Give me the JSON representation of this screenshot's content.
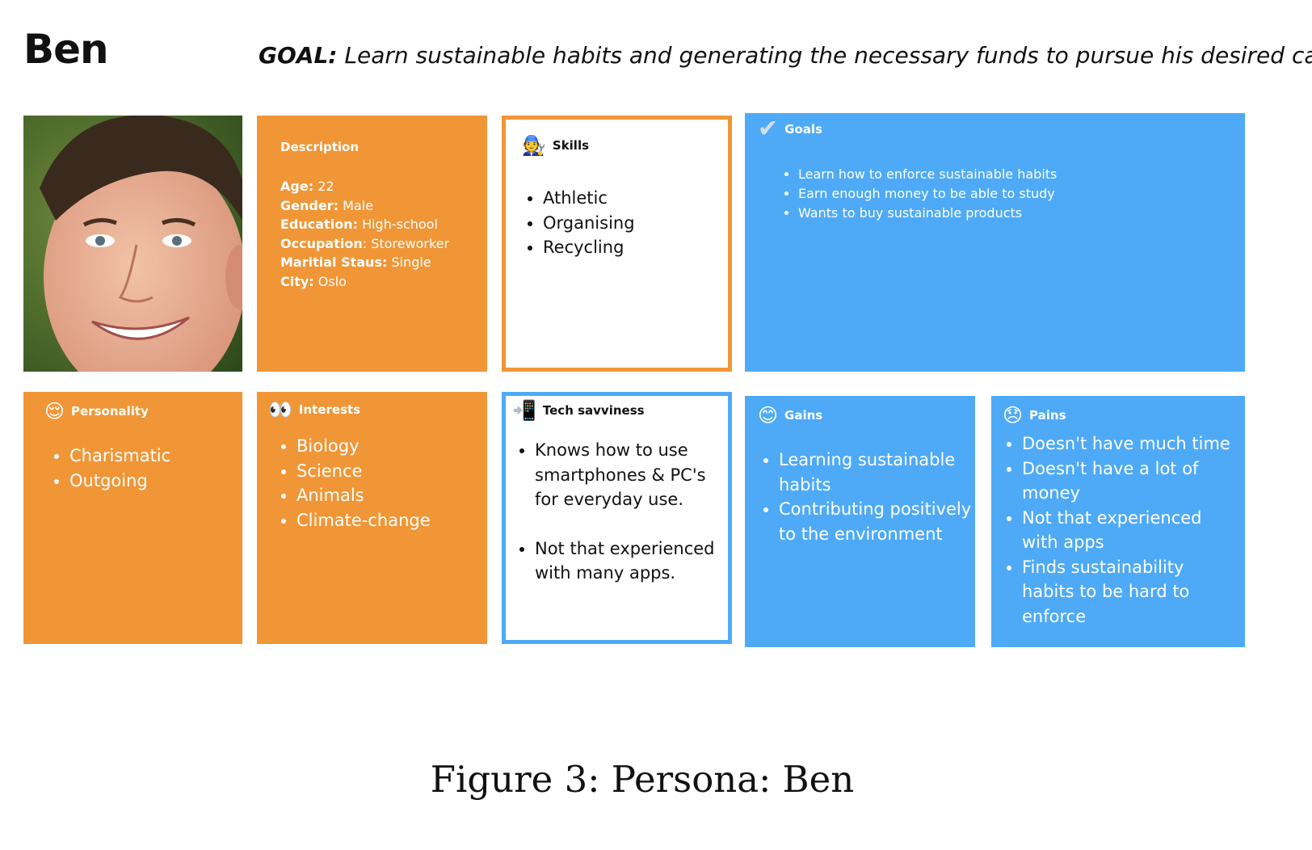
{
  "persona": {
    "name": "Ben",
    "goal_label": "GOAL:",
    "goal_text": "Learn sustainable habits and generating the necessary funds to pursue his desired career."
  },
  "description": {
    "title": "Description",
    "fields": [
      {
        "label": "Age:",
        "value": "22"
      },
      {
        "label": "Gender:",
        "value": "Male"
      },
      {
        "label": "Education:",
        "value": "High-school"
      },
      {
        "label": "Occupation",
        "value": ": Storeworker"
      },
      {
        "label": "Maritial Staus:",
        "value": "Single"
      },
      {
        "label": "City:",
        "value": "Oslo"
      }
    ]
  },
  "skills": {
    "title": "Skills",
    "icon": "mechanic-emoji-icon",
    "items": [
      "Athletic",
      "Organising",
      "Recycling"
    ]
  },
  "goals": {
    "title": "Goals",
    "icon": "checkmark-icon",
    "items": [
      "Learn how to enforce sustainable habits",
      "Earn enough money to be able to study",
      "Wants to buy sustainable products"
    ]
  },
  "personality": {
    "title": "Personality",
    "icon": "relieved-face-icon",
    "items": [
      "Charismatic",
      "Outgoing"
    ]
  },
  "interests": {
    "title": "Interests",
    "icon": "eyes-icon",
    "items": [
      "Biology",
      "Science",
      "Animals",
      "Climate-change"
    ]
  },
  "tech": {
    "title": "Tech savviness",
    "icon": "mobile-arrow-icon",
    "items": [
      "Knows how to use smartphones & PC's for everyday use.",
      "Not that experienced with many apps."
    ]
  },
  "gains": {
    "title": "Gains",
    "icon": "smiling-face-icon",
    "items": [
      "Learning sustainable habits",
      "Contributing positively to the environment"
    ]
  },
  "pains": {
    "title": "Pains",
    "icon": "disappointed-face-icon",
    "items": [
      "Doesn't have much time",
      "Doesn't have a lot of money",
      "Not that experienced with apps",
      "Finds sustainability habits to be hard to enforce"
    ]
  },
  "caption": "Figure 3:  Persona:  Ben",
  "colors": {
    "orange": "#f09637",
    "blue": "#4eaaf6"
  }
}
